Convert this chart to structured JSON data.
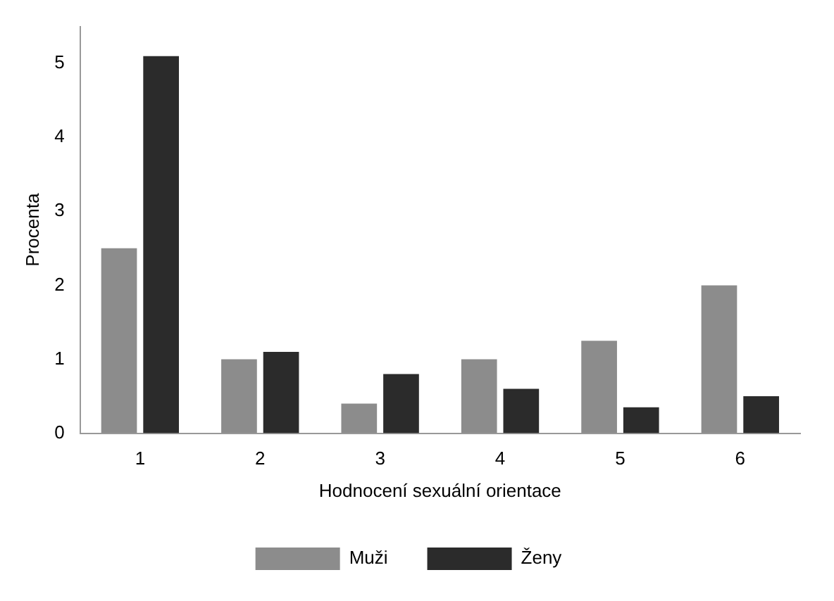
{
  "chart_data": {
    "type": "bar",
    "xlabel": "Hodnocení sexuální orientace",
    "ylabel": "Procenta",
    "categories": [
      "1",
      "2",
      "3",
      "4",
      "5",
      "6"
    ],
    "series": [
      {
        "name": "Muži",
        "color": "#8c8c8c",
        "values": [
          2.5,
          1.0,
          0.4,
          1.0,
          1.25,
          2.0
        ]
      },
      {
        "name": "Ženy",
        "color": "#2b2b2b",
        "values": [
          5.1,
          1.1,
          0.8,
          0.6,
          0.35,
          0.5
        ]
      }
    ],
    "ylim": [
      0,
      5.5
    ],
    "yticks": [
      0,
      1,
      2,
      3,
      4,
      5
    ],
    "grid": false,
    "legend": "bottom"
  }
}
